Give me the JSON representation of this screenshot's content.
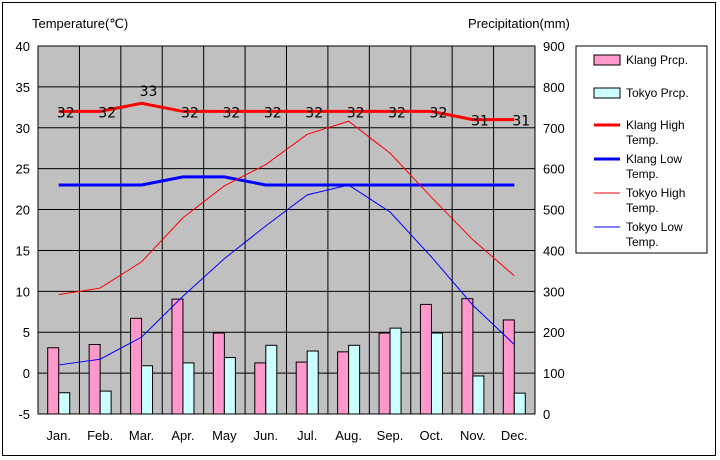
{
  "chart_data": {
    "type": "bar+line",
    "y_left_label": "Temperature(℃)",
    "y_right_label": "Precipitation(mm)",
    "y_left_range": [
      -5,
      40
    ],
    "y_left_ticks": [
      -5,
      0,
      5,
      10,
      15,
      20,
      25,
      30,
      35,
      40
    ],
    "y_right_range": [
      0,
      900
    ],
    "y_right_ticks": [
      0,
      100,
      200,
      300,
      400,
      500,
      600,
      700,
      800,
      900
    ],
    "categories": [
      "Jan.",
      "Feb.",
      "Mar.",
      "Apr.",
      "May",
      "Jun.",
      "Jul.",
      "Aug.",
      "Sep.",
      "Oct.",
      "Nov.",
      "Dec."
    ],
    "grid": true,
    "legend_position": "right",
    "series": [
      {
        "name": "Klang Prcp.",
        "kind": "bar",
        "axis": "right",
        "color": "#ff99cc",
        "values": [
          162,
          170,
          234,
          281,
          198,
          125,
          127,
          152,
          198,
          268,
          282,
          230
        ]
      },
      {
        "name": "Tokyo Prcp.",
        "kind": "bar",
        "axis": "right",
        "color": "#ccffff",
        "values": [
          52,
          56,
          118,
          125,
          138,
          168,
          154,
          168,
          210,
          198,
          93,
          51
        ]
      },
      {
        "name": "Klang High Temp.",
        "kind": "line",
        "axis": "left",
        "color": "#ff0000",
        "width": 3,
        "values": [
          32,
          32,
          33,
          32,
          32,
          32,
          32,
          32,
          32,
          32,
          31,
          31
        ],
        "labels": [
          "32",
          "32",
          "33",
          "32",
          "32",
          "32",
          "32",
          "32",
          "32",
          "32",
          "31",
          "31"
        ]
      },
      {
        "name": "Klang Low Temp.",
        "kind": "line",
        "axis": "left",
        "color": "#0000ff",
        "width": 3,
        "values": [
          23,
          23,
          23,
          24,
          24,
          23,
          23,
          23,
          23,
          23,
          23,
          23
        ]
      },
      {
        "name": "Tokyo High Temp.",
        "kind": "line",
        "axis": "left",
        "color": "#ff0000",
        "width": 1,
        "values": [
          9.6,
          10.4,
          13.6,
          19.0,
          22.9,
          25.5,
          29.2,
          30.8,
          26.9,
          21.5,
          16.3,
          11.9
        ]
      },
      {
        "name": "Tokyo Low Temp.",
        "kind": "line",
        "axis": "left",
        "color": "#0000ff",
        "width": 1,
        "values": [
          1.0,
          1.7,
          4.4,
          9.4,
          14.0,
          18.0,
          21.8,
          23.0,
          19.7,
          14.2,
          8.3,
          3.5
        ]
      }
    ],
    "legend": {
      "entries": [
        {
          "kind": "box",
          "color": "#ff99cc",
          "lines": [
            "Klang Prcp."
          ]
        },
        {
          "kind": "box",
          "color": "#ccffff",
          "lines": [
            "Tokyo Prcp."
          ]
        },
        {
          "kind": "line",
          "color": "#ff0000",
          "width": 3,
          "lines": [
            "Klang High",
            "Temp."
          ]
        },
        {
          "kind": "line",
          "color": "#0000ff",
          "width": 3,
          "lines": [
            "Klang Low",
            "Temp."
          ]
        },
        {
          "kind": "line",
          "color": "#ff0000",
          "width": 1,
          "lines": [
            "Tokyo High",
            "Temp."
          ]
        },
        {
          "kind": "line",
          "color": "#0000ff",
          "width": 1,
          "lines": [
            "Tokyo Low",
            "Temp."
          ]
        }
      ]
    },
    "plot_background": "#c0c0c0"
  }
}
